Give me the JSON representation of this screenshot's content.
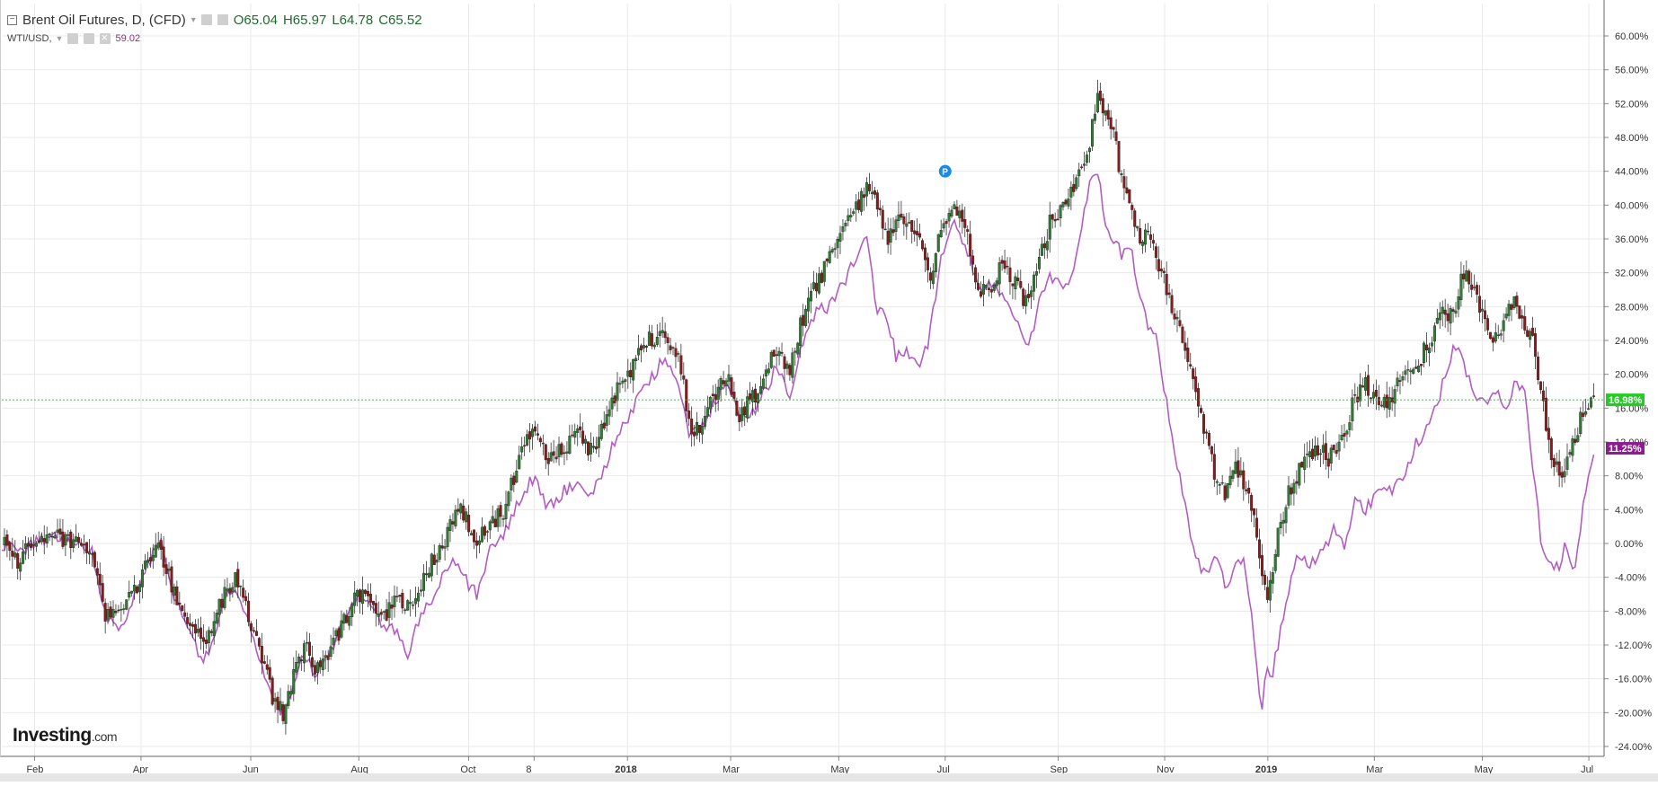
{
  "legend": {
    "main_title": "Brent Oil Futures, D, (CFD)",
    "open": "O65.04",
    "high": "H65.97",
    "low": "L64.78",
    "close": "C65.52",
    "wti_title": "WTI/USD,",
    "wti_value": "59.02"
  },
  "logo": {
    "brand": "Investing",
    "suffix": ".com"
  },
  "colors": {
    "up_candle": "#2e7d32",
    "down_candle": "#8b1a1a",
    "wti_line": "#b35cc4",
    "current_brent_badge": "#22cc22",
    "current_wti_badge": "#8c1d8c",
    "grid": "#e9e9e9",
    "note_marker": "#1e88e5"
  },
  "chart_data": {
    "type": "line",
    "scale": "percent",
    "y_unit": "%",
    "ylim": [
      -25,
      62
    ],
    "y_ticks": [
      "60.00%",
      "56.00%",
      "52.00%",
      "48.00%",
      "44.00%",
      "40.00%",
      "36.00%",
      "32.00%",
      "28.00%",
      "24.00%",
      "20.00%",
      "16.00%",
      "12.00%",
      "8.00%",
      "4.00%",
      "0.00%",
      "-4.00%",
      "-8.00%",
      "-12.00%",
      "-16.00%",
      "-20.00%",
      "-24.00%"
    ],
    "x_ticks": [
      {
        "label": "Feb",
        "t": 0.02
      },
      {
        "label": "Apr",
        "t": 0.085
      },
      {
        "label": "Jun",
        "t": 0.152
      },
      {
        "label": "Aug",
        "t": 0.218
      },
      {
        "label": "Oct",
        "t": 0.285
      },
      {
        "label": "8",
        "t": 0.325
      },
      {
        "label": "2018",
        "t": 0.382
      },
      {
        "label": "Mar",
        "t": 0.445
      },
      {
        "label": "May",
        "t": 0.511
      },
      {
        "label": "Jul",
        "t": 0.576
      },
      {
        "label": "Sep",
        "t": 0.645
      },
      {
        "label": "Nov",
        "t": 0.71
      },
      {
        "label": "2019",
        "t": 0.773
      },
      {
        "label": "Mar",
        "t": 0.838
      },
      {
        "label": "May",
        "t": 0.904
      },
      {
        "label": "Jul",
        "t": 0.969
      }
    ],
    "grid": true,
    "series": [
      {
        "name": "Brent Oil Futures",
        "style": "candlestick",
        "current_value": 16.98,
        "current_label": "16.98%",
        "points": [
          [
            0.0,
            0
          ],
          [
            0.01,
            -2
          ],
          [
            0.02,
            0
          ],
          [
            0.03,
            1
          ],
          [
            0.045,
            0
          ],
          [
            0.055,
            -1
          ],
          [
            0.062,
            -8
          ],
          [
            0.072,
            -9
          ],
          [
            0.08,
            -6
          ],
          [
            0.09,
            -2
          ],
          [
            0.097,
            -0.5
          ],
          [
            0.105,
            -6
          ],
          [
            0.115,
            -9
          ],
          [
            0.122,
            -12
          ],
          [
            0.13,
            -9
          ],
          [
            0.138,
            -5
          ],
          [
            0.145,
            -4
          ],
          [
            0.152,
            -10
          ],
          [
            0.16,
            -14
          ],
          [
            0.166,
            -19
          ],
          [
            0.172,
            -20
          ],
          [
            0.178,
            -16
          ],
          [
            0.185,
            -12
          ],
          [
            0.192,
            -15
          ],
          [
            0.2,
            -13
          ],
          [
            0.21,
            -9
          ],
          [
            0.216,
            -6
          ],
          [
            0.224,
            -7
          ],
          [
            0.232,
            -9
          ],
          [
            0.24,
            -7
          ],
          [
            0.25,
            -8
          ],
          [
            0.258,
            -4
          ],
          [
            0.266,
            -1
          ],
          [
            0.274,
            2
          ],
          [
            0.28,
            5
          ],
          [
            0.288,
            0
          ],
          [
            0.298,
            2
          ],
          [
            0.307,
            4
          ],
          [
            0.316,
            10
          ],
          [
            0.325,
            14
          ],
          [
            0.333,
            10
          ],
          [
            0.342,
            11
          ],
          [
            0.352,
            13
          ],
          [
            0.36,
            11
          ],
          [
            0.366,
            13
          ],
          [
            0.372,
            17
          ],
          [
            0.38,
            19
          ],
          [
            0.387,
            22
          ],
          [
            0.395,
            24
          ],
          [
            0.405,
            25
          ],
          [
            0.414,
            22
          ],
          [
            0.421,
            12
          ],
          [
            0.428,
            15
          ],
          [
            0.436,
            18
          ],
          [
            0.443,
            20
          ],
          [
            0.45,
            15
          ],
          [
            0.458,
            17
          ],
          [
            0.466,
            20
          ],
          [
            0.473,
            23
          ],
          [
            0.481,
            20
          ],
          [
            0.488,
            26
          ],
          [
            0.496,
            30
          ],
          [
            0.504,
            33
          ],
          [
            0.512,
            36
          ],
          [
            0.52,
            39
          ],
          [
            0.528,
            42
          ],
          [
            0.534,
            41
          ],
          [
            0.54,
            36
          ],
          [
            0.546,
            38
          ],
          [
            0.554,
            37
          ],
          [
            0.561,
            35
          ],
          [
            0.566,
            31
          ],
          [
            0.573,
            37
          ],
          [
            0.58,
            40
          ],
          [
            0.587,
            39
          ],
          [
            0.592,
            33
          ],
          [
            0.597,
            30
          ],
          [
            0.603,
            30
          ],
          [
            0.61,
            33
          ],
          [
            0.618,
            31
          ],
          [
            0.626,
            28
          ],
          [
            0.633,
            33
          ],
          [
            0.64,
            38
          ],
          [
            0.647,
            39
          ],
          [
            0.654,
            42
          ],
          [
            0.66,
            44
          ],
          [
            0.664,
            47
          ],
          [
            0.669,
            53
          ],
          [
            0.674,
            51
          ],
          [
            0.679,
            48
          ],
          [
            0.684,
            43
          ],
          [
            0.689,
            41
          ],
          [
            0.694,
            36
          ],
          [
            0.699,
            37
          ],
          [
            0.705,
            34
          ],
          [
            0.711,
            30
          ],
          [
            0.717,
            27
          ],
          [
            0.723,
            22
          ],
          [
            0.729,
            18
          ],
          [
            0.735,
            13
          ],
          [
            0.741,
            8
          ],
          [
            0.747,
            6
          ],
          [
            0.753,
            9
          ],
          [
            0.759,
            7
          ],
          [
            0.765,
            3
          ],
          [
            0.769,
            -3
          ],
          [
            0.772,
            -7
          ],
          [
            0.775,
            -4
          ],
          [
            0.779,
            1
          ],
          [
            0.784,
            5
          ],
          [
            0.79,
            8
          ],
          [
            0.796,
            10
          ],
          [
            0.803,
            11
          ],
          [
            0.811,
            10
          ],
          [
            0.819,
            13
          ],
          [
            0.826,
            17
          ],
          [
            0.833,
            19
          ],
          [
            0.841,
            16
          ],
          [
            0.848,
            17
          ],
          [
            0.856,
            20
          ],
          [
            0.864,
            21
          ],
          [
            0.872,
            24
          ],
          [
            0.88,
            27
          ],
          [
            0.887,
            28
          ],
          [
            0.894,
            33
          ],
          [
            0.9,
            29
          ],
          [
            0.906,
            26
          ],
          [
            0.912,
            24
          ],
          [
            0.918,
            27
          ],
          [
            0.924,
            29
          ],
          [
            0.93,
            25
          ],
          [
            0.935,
            25
          ],
          [
            0.939,
            18
          ],
          [
            0.946,
            11
          ],
          [
            0.952,
            8
          ],
          [
            0.958,
            11
          ],
          [
            0.963,
            14
          ],
          [
            0.968,
            17
          ],
          [
            0.972,
            17
          ]
        ]
      },
      {
        "name": "WTI/USD",
        "style": "line",
        "current_value": 11.25,
        "current_label": "11.25%",
        "points": [
          [
            0.0,
            0
          ],
          [
            0.01,
            -1
          ],
          [
            0.02,
            0
          ],
          [
            0.03,
            1
          ],
          [
            0.045,
            0
          ],
          [
            0.055,
            -1
          ],
          [
            0.062,
            -8
          ],
          [
            0.072,
            -10
          ],
          [
            0.08,
            -7
          ],
          [
            0.09,
            -2
          ],
          [
            0.097,
            0
          ],
          [
            0.105,
            -6
          ],
          [
            0.115,
            -10
          ],
          [
            0.122,
            -14
          ],
          [
            0.13,
            -11
          ],
          [
            0.138,
            -6
          ],
          [
            0.145,
            -6
          ],
          [
            0.152,
            -10
          ],
          [
            0.16,
            -15
          ],
          [
            0.166,
            -19
          ],
          [
            0.172,
            -20
          ],
          [
            0.178,
            -17
          ],
          [
            0.185,
            -13
          ],
          [
            0.192,
            -16
          ],
          [
            0.2,
            -13
          ],
          [
            0.21,
            -9
          ],
          [
            0.216,
            -7
          ],
          [
            0.224,
            -7
          ],
          [
            0.232,
            -10
          ],
          [
            0.24,
            -10
          ],
          [
            0.248,
            -13
          ],
          [
            0.255,
            -9
          ],
          [
            0.262,
            -7
          ],
          [
            0.27,
            -3
          ],
          [
            0.276,
            -2
          ],
          [
            0.282,
            -4
          ],
          [
            0.29,
            -6
          ],
          [
            0.298,
            -1
          ],
          [
            0.307,
            1
          ],
          [
            0.316,
            5
          ],
          [
            0.325,
            8
          ],
          [
            0.333,
            4
          ],
          [
            0.342,
            6
          ],
          [
            0.352,
            7
          ],
          [
            0.36,
            6
          ],
          [
            0.366,
            8
          ],
          [
            0.372,
            11
          ],
          [
            0.38,
            14
          ],
          [
            0.388,
            17
          ],
          [
            0.395,
            19
          ],
          [
            0.404,
            22
          ],
          [
            0.412,
            20
          ],
          [
            0.419,
            13
          ],
          [
            0.428,
            14
          ],
          [
            0.436,
            17
          ],
          [
            0.443,
            19
          ],
          [
            0.45,
            15
          ],
          [
            0.458,
            15
          ],
          [
            0.466,
            18
          ],
          [
            0.473,
            21
          ],
          [
            0.481,
            17
          ],
          [
            0.488,
            23
          ],
          [
            0.496,
            27
          ],
          [
            0.504,
            28
          ],
          [
            0.512,
            30
          ],
          [
            0.52,
            33
          ],
          [
            0.528,
            36
          ],
          [
            0.534,
            28
          ],
          [
            0.54,
            27
          ],
          [
            0.546,
            22
          ],
          [
            0.552,
            23
          ],
          [
            0.559,
            21
          ],
          [
            0.566,
            24
          ],
          [
            0.573,
            33
          ],
          [
            0.58,
            38
          ],
          [
            0.587,
            36
          ],
          [
            0.592,
            33
          ],
          [
            0.597,
            30
          ],
          [
            0.603,
            31
          ],
          [
            0.61,
            30
          ],
          [
            0.618,
            27
          ],
          [
            0.626,
            23
          ],
          [
            0.633,
            28
          ],
          [
            0.64,
            32
          ],
          [
            0.647,
            30
          ],
          [
            0.654,
            32
          ],
          [
            0.66,
            38
          ],
          [
            0.664,
            43
          ],
          [
            0.669,
            44
          ],
          [
            0.674,
            38
          ],
          [
            0.679,
            36
          ],
          [
            0.684,
            34
          ],
          [
            0.689,
            35
          ],
          [
            0.694,
            30
          ],
          [
            0.699,
            26
          ],
          [
            0.705,
            24
          ],
          [
            0.711,
            17
          ],
          [
            0.717,
            10
          ],
          [
            0.723,
            4
          ],
          [
            0.729,
            -2
          ],
          [
            0.735,
            -4
          ],
          [
            0.741,
            -1
          ],
          [
            0.747,
            -5
          ],
          [
            0.753,
            -3
          ],
          [
            0.759,
            -2
          ],
          [
            0.765,
            -12
          ],
          [
            0.769,
            -20
          ],
          [
            0.772,
            -15
          ],
          [
            0.776,
            -15
          ],
          [
            0.78,
            -11
          ],
          [
            0.786,
            -5
          ],
          [
            0.792,
            -1
          ],
          [
            0.798,
            -3
          ],
          [
            0.806,
            -1
          ],
          [
            0.814,
            2
          ],
          [
            0.82,
            -1
          ],
          [
            0.826,
            5
          ],
          [
            0.833,
            4
          ],
          [
            0.841,
            6
          ],
          [
            0.848,
            6
          ],
          [
            0.856,
            8
          ],
          [
            0.864,
            12
          ],
          [
            0.872,
            14
          ],
          [
            0.88,
            19
          ],
          [
            0.887,
            24
          ],
          [
            0.894,
            20
          ],
          [
            0.9,
            17
          ],
          [
            0.906,
            17
          ],
          [
            0.912,
            18
          ],
          [
            0.918,
            16
          ],
          [
            0.924,
            19
          ],
          [
            0.93,
            18
          ],
          [
            0.935,
            9
          ],
          [
            0.94,
            0
          ],
          [
            0.946,
            -2
          ],
          [
            0.95,
            -3
          ],
          [
            0.955,
            0
          ],
          [
            0.96,
            -4
          ],
          [
            0.964,
            2
          ],
          [
            0.968,
            8
          ],
          [
            0.972,
            11
          ]
        ]
      }
    ],
    "annotation": {
      "label": "P",
      "t": 0.576,
      "y": 44
    }
  }
}
